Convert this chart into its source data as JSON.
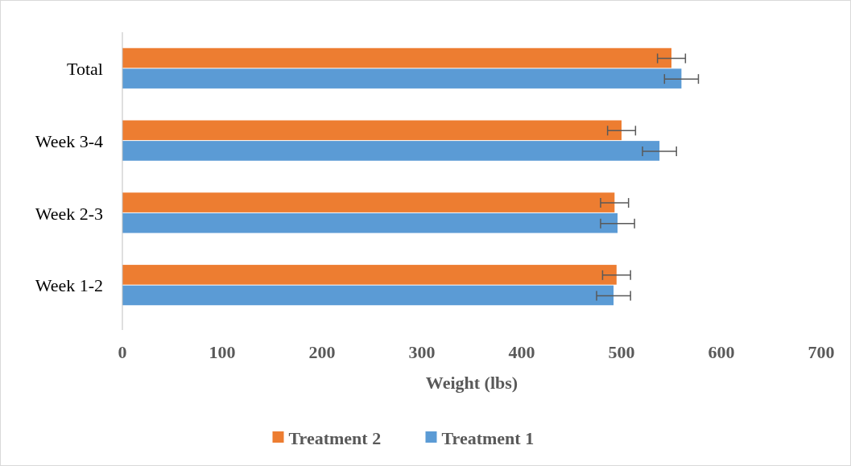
{
  "chart_data": {
    "type": "bar",
    "orientation": "horizontal",
    "xlabel": "Weight (lbs)",
    "categories": [
      "Total",
      "Week 3-4",
      "Week 2-3",
      "Week 1-2"
    ],
    "series": [
      {
        "name": "Treatment 2",
        "color": "#ed7d31",
        "values": [
          550,
          500,
          493,
          495
        ],
        "errors": [
          14,
          14,
          14,
          14
        ]
      },
      {
        "name": "Treatment 1",
        "color": "#5b9bd5",
        "values": [
          560,
          538,
          496,
          492
        ],
        "errors": [
          17,
          17,
          17,
          17
        ]
      }
    ],
    "xlim": [
      0,
      700
    ],
    "xticks": [
      0,
      100,
      200,
      300,
      400,
      500,
      600,
      700
    ],
    "grid": false,
    "legend": "bottom"
  }
}
